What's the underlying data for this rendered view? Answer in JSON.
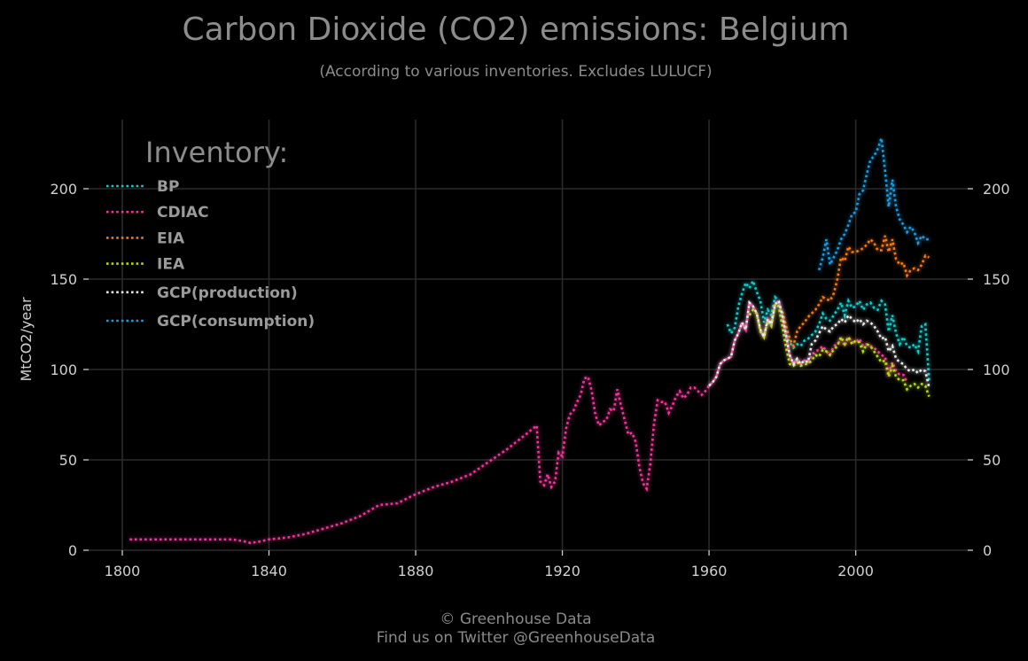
{
  "chart_data": {
    "type": "line",
    "title": "Carbon Dioxide (CO2) emissions: Belgium",
    "subtitle": "(According to various inventories. Excludes LULUCF)",
    "ylabel": "MtCO2/year",
    "xlabel": "",
    "xlim": [
      1794,
      2031
    ],
    "ylim": [
      0,
      235
    ],
    "xticks": [
      1800,
      1840,
      1880,
      1920,
      1960,
      2000
    ],
    "yticks": [
      0,
      50,
      100,
      150,
      200
    ],
    "xtick_labels": [
      "1800",
      "1840",
      "1880",
      "1920",
      "1960",
      "2000"
    ],
    "ytick_labels": [
      "0",
      "50",
      "100",
      "150",
      "200"
    ],
    "grid": true,
    "legend_title": "Inventory:",
    "legend_position": "top-left",
    "line_style": "dotted",
    "series": [
      {
        "name": "BP",
        "color": "#18c8c8",
        "x": [
          1965,
          1966,
          1967,
          1968,
          1969,
          1970,
          1971,
          1972,
          1973,
          1974,
          1975,
          1976,
          1977,
          1978,
          1979,
          1980,
          1981,
          1982,
          1983,
          1984,
          1985,
          1986,
          1987,
          1988,
          1989,
          1990,
          1991,
          1992,
          1993,
          1994,
          1995,
          1996,
          1997,
          1998,
          1999,
          2000,
          2001,
          2002,
          2003,
          2004,
          2005,
          2006,
          2007,
          2008,
          2009,
          2010,
          2011,
          2012,
          2013,
          2014,
          2015,
          2016,
          2017,
          2018,
          2019,
          2020
        ],
        "y": [
          125,
          120,
          123,
          135,
          142,
          148,
          145,
          149,
          143,
          138,
          126,
          133,
          130,
          140,
          138,
          129,
          119,
          115,
          112,
          114,
          113,
          116,
          117,
          119,
          121,
          125,
          131,
          128,
          127,
          130,
          133,
          137,
          130,
          138,
          134,
          135,
          138,
          133,
          136,
          137,
          134,
          133,
          138,
          136,
          121,
          130,
          120,
          114,
          118,
          113,
          112,
          114,
          110,
          124,
          125,
          94
        ]
      },
      {
        "name": "CDIAC",
        "color": "#f0349a",
        "x": [
          1802,
          1805,
          1810,
          1815,
          1820,
          1825,
          1830,
          1833,
          1835,
          1838,
          1840,
          1845,
          1850,
          1855,
          1860,
          1865,
          1870,
          1875,
          1880,
          1885,
          1890,
          1895,
          1900,
          1905,
          1910,
          1913,
          1914,
          1915,
          1916,
          1917,
          1918,
          1919,
          1920,
          1921,
          1922,
          1923,
          1924,
          1925,
          1926,
          1927,
          1928,
          1929,
          1930,
          1931,
          1932,
          1933,
          1934,
          1935,
          1936,
          1937,
          1938,
          1939,
          1940,
          1941,
          1942,
          1943,
          1944,
          1945,
          1946,
          1947,
          1948,
          1949,
          1950,
          1951,
          1952,
          1953,
          1954,
          1955,
          1956,
          1957,
          1958,
          1959,
          1960,
          1961,
          1962,
          1963,
          1964,
          1965,
          1966,
          1967,
          1968,
          1969,
          1970,
          1971,
          1972,
          1973,
          1974,
          1975,
          1976,
          1977,
          1978,
          1979,
          1980,
          1981,
          1982,
          1983,
          1984,
          1985,
          1986,
          1987,
          1988,
          1989,
          1990,
          1991,
          1992,
          1993,
          1994,
          1995,
          1996,
          1997,
          1998,
          1999,
          2000,
          2001,
          2002,
          2003,
          2004,
          2005,
          2006,
          2007,
          2008,
          2009,
          2010,
          2011,
          2012,
          2013,
          2014
        ],
        "y": [
          6,
          6,
          6,
          6,
          6,
          6,
          6,
          5,
          4,
          5,
          6,
          7,
          9,
          12,
          15,
          19,
          25,
          26,
          31,
          35,
          38,
          42,
          49,
          56,
          64,
          69,
          38,
          36,
          42,
          35,
          38,
          54,
          52,
          67,
          75,
          77,
          82,
          86,
          95,
          96,
          88,
          75,
          69,
          71,
          72,
          78,
          77,
          89,
          80,
          72,
          64,
          65,
          60,
          46,
          37,
          34,
          48,
          70,
          83,
          82,
          82,
          76,
          80,
          85,
          88,
          84,
          86,
          90,
          90,
          88,
          86,
          88,
          91,
          93,
          96,
          103,
          105,
          106,
          107,
          116,
          120,
          126,
          122,
          137,
          135,
          131,
          122,
          118,
          128,
          125,
          136,
          138,
          130,
          119,
          108,
          103,
          106,
          103,
          105,
          104,
          108,
          110,
          111,
          113,
          110,
          108,
          113,
          114,
          117,
          113,
          118,
          115,
          115,
          117,
          113,
          114,
          113,
          112,
          110,
          108,
          107,
          98,
          104,
          99,
          97,
          97,
          93
        ]
      },
      {
        "name": "EIA",
        "color": "#f07a18",
        "x": [
          1980,
          1981,
          1982,
          1983,
          1984,
          1985,
          1986,
          1987,
          1988,
          1989,
          1990,
          1991,
          1992,
          1993,
          1994,
          1995,
          1996,
          1997,
          1998,
          1999,
          2000,
          2001,
          2002,
          2003,
          2004,
          2005,
          2006,
          2007,
          2008,
          2009,
          2010,
          2011,
          2012,
          2013,
          2014,
          2015,
          2016,
          2017,
          2018,
          2019,
          2020
        ],
        "y": [
          132,
          124,
          117,
          113,
          121,
          124,
          126,
          129,
          131,
          133,
          136,
          140,
          139,
          138,
          142,
          150,
          162,
          160,
          168,
          165,
          165,
          166,
          167,
          169,
          172,
          170,
          166,
          166,
          174,
          165,
          172,
          161,
          158,
          159,
          152,
          155,
          156,
          155,
          158,
          163,
          162
        ]
      },
      {
        "name": "IEA",
        "color": "#b2d818",
        "x": [
          1971,
          1972,
          1973,
          1974,
          1975,
          1976,
          1977,
          1978,
          1979,
          1980,
          1981,
          1982,
          1983,
          1984,
          1985,
          1986,
          1987,
          1988,
          1989,
          1990,
          1991,
          1992,
          1993,
          1994,
          1995,
          1996,
          1997,
          1998,
          1999,
          2000,
          2001,
          2002,
          2003,
          2004,
          2005,
          2006,
          2007,
          2008,
          2009,
          2010,
          2011,
          2012,
          2013,
          2014,
          2015,
          2016,
          2017,
          2018,
          2019,
          2020
        ],
        "y": [
          130,
          133,
          131,
          121,
          118,
          127,
          124,
          136,
          135,
          124,
          112,
          103,
          102,
          104,
          102,
          103,
          103,
          105,
          108,
          107,
          111,
          110,
          108,
          111,
          113,
          118,
          114,
          118,
          114,
          116,
          115,
          110,
          114,
          113,
          110,
          107,
          104,
          105,
          96,
          102,
          96,
          94,
          94,
          89,
          91,
          92,
          90,
          92,
          91,
          85
        ]
      },
      {
        "name": "GCP(production)",
        "color": "#e8e8e8",
        "x": [
          1960,
          1961,
          1962,
          1963,
          1964,
          1965,
          1966,
          1967,
          1968,
          1969,
          1970,
          1971,
          1972,
          1973,
          1974,
          1975,
          1976,
          1977,
          1978,
          1979,
          1980,
          1981,
          1982,
          1983,
          1984,
          1985,
          1986,
          1987,
          1988,
          1989,
          1990,
          1991,
          1992,
          1993,
          1994,
          1995,
          1996,
          1997,
          1998,
          1999,
          2000,
          2001,
          2002,
          2003,
          2004,
          2005,
          2006,
          2007,
          2008,
          2009,
          2010,
          2011,
          2012,
          2013,
          2014,
          2015,
          2016,
          2017,
          2018,
          2019,
          2020
        ],
        "y": [
          91,
          93,
          96,
          103,
          105,
          106,
          107,
          116,
          120,
          126,
          122,
          137,
          135,
          131,
          122,
          118,
          128,
          125,
          136,
          138,
          130,
          119,
          108,
          103,
          106,
          103,
          105,
          104,
          114,
          116,
          120,
          124,
          122,
          121,
          124,
          125,
          128,
          126,
          130,
          128,
          126,
          128,
          125,
          127,
          126,
          124,
          121,
          117,
          118,
          110,
          113,
          106,
          104,
          103,
          100,
          99,
          100,
          98,
          100,
          99,
          90
        ]
      },
      {
        "name": "GCP(consumption)",
        "color": "#1a9ce0",
        "x": [
          1990,
          1991,
          1992,
          1993,
          1994,
          1995,
          1996,
          1997,
          1998,
          1999,
          2000,
          2001,
          2002,
          2003,
          2004,
          2005,
          2006,
          2007,
          2008,
          2009,
          2010,
          2011,
          2012,
          2013,
          2014,
          2015,
          2016,
          2017,
          2018,
          2019,
          2020
        ],
        "y": [
          155,
          162,
          172,
          158,
          162,
          166,
          172,
          175,
          180,
          186,
          187,
          197,
          199,
          208,
          216,
          218,
          222,
          228,
          210,
          190,
          205,
          190,
          183,
          180,
          176,
          179,
          176,
          170,
          174,
          172,
          172
        ]
      }
    ]
  },
  "footer": {
    "line1": "© Greenhouse Data",
    "line2": "Find us on Twitter @GreenhouseData"
  }
}
